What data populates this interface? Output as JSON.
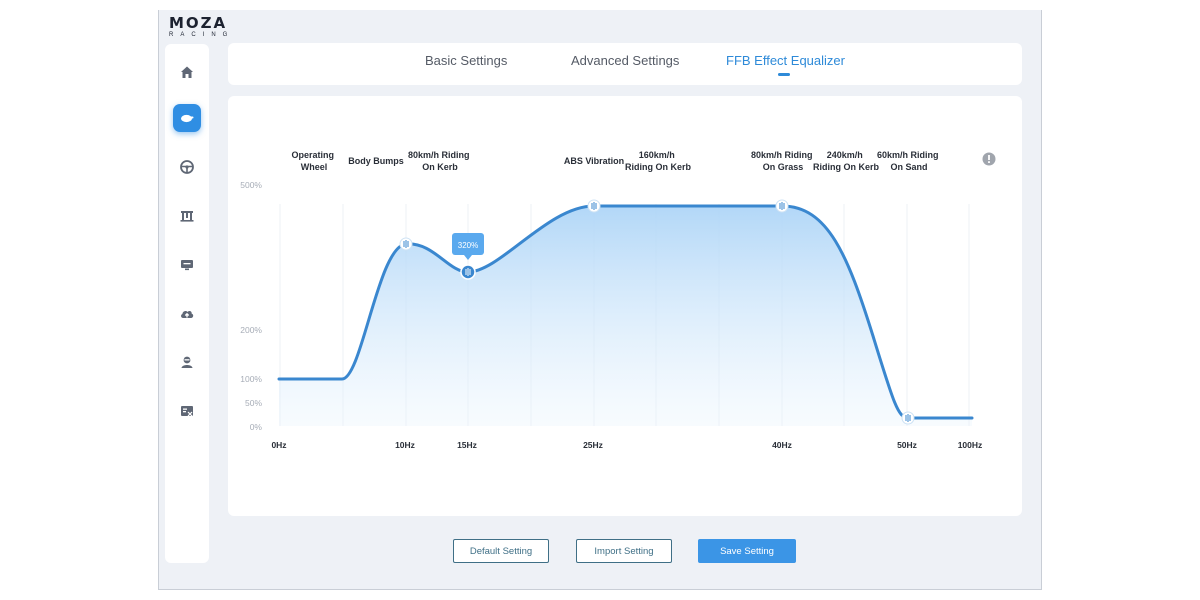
{
  "brand": {
    "name": "MOZA",
    "sub": "RACING"
  },
  "sidebar": {
    "items": [
      {
        "icon": "home-icon"
      },
      {
        "icon": "pedal-icon",
        "active": true
      },
      {
        "icon": "steering-wheel-icon"
      },
      {
        "icon": "wheelbase-icon"
      },
      {
        "icon": "dashboard-icon"
      },
      {
        "icon": "cloud-upload-icon"
      },
      {
        "icon": "driver-icon"
      },
      {
        "icon": "support-icon"
      }
    ]
  },
  "tabs": [
    {
      "label": "Basic Settings"
    },
    {
      "label": "Advanced Settings"
    },
    {
      "label": "FFB Effect Equalizer",
      "active": true
    }
  ],
  "chart": {
    "info_icon": "info-icon",
    "tooltip": "320%",
    "effect_labels": [
      [
        "Operating",
        "Wheel"
      ],
      [
        "Body Bumps"
      ],
      [
        "80km/h Riding",
        "On Kerb"
      ],
      [
        "ABS Vibration"
      ],
      [
        "160km/h",
        "Riding On Kerb"
      ],
      [
        "80km/h Riding",
        "On Grass"
      ],
      [
        "240km/h",
        "Riding On Kerb"
      ],
      [
        "60km/h Riding",
        "On Sand"
      ]
    ]
  },
  "chart_data": {
    "type": "line",
    "title": "",
    "xlabel": "",
    "ylabel": "",
    "x_ticks": [
      "0Hz",
      "10Hz",
      "15Hz",
      "25Hz",
      "40Hz",
      "50Hz",
      "100Hz"
    ],
    "y_ticks": [
      "500%",
      "200%",
      "100%",
      "50%",
      "0%"
    ],
    "handles": [
      {
        "x": "10Hz",
        "y": 380
      },
      {
        "x": "15Hz",
        "y": 320
      },
      {
        "x": "25Hz",
        "y": 460
      },
      {
        "x": "40Hz",
        "y": 460
      },
      {
        "x": "50Hz",
        "y": 20
      }
    ],
    "start": {
      "x": "0Hz",
      "y": 100
    },
    "end": {
      "x": "100Hz",
      "y": 20
    }
  },
  "buttons": {
    "default": "Default Setting",
    "import": "Import Setting",
    "save": "Save Setting"
  }
}
